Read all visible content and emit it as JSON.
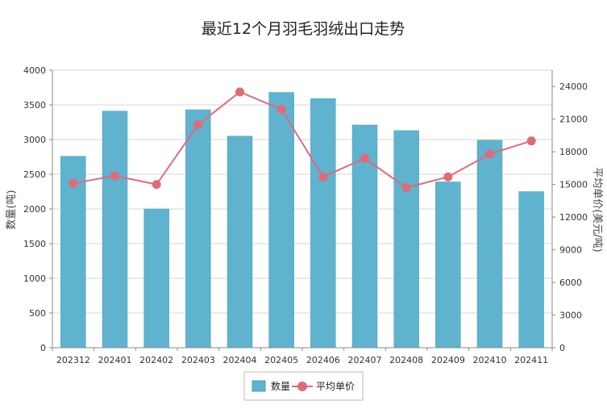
{
  "chart_data": {
    "type": "bar",
    "title": "最近12个月羽毛羽绒出口走势",
    "categories": [
      "202312",
      "202401",
      "202402",
      "202403",
      "202404",
      "202405",
      "202406",
      "202407",
      "202408",
      "202409",
      "202410",
      "202411"
    ],
    "series": [
      {
        "name": "数量",
        "type": "bar",
        "axis": "left",
        "color": "#5fb3ce",
        "values": [
          2760,
          3410,
          2000,
          3430,
          3050,
          3680,
          3590,
          3210,
          3130,
          2390,
          2990,
          2250
        ]
      },
      {
        "name": "平均单价",
        "type": "line",
        "axis": "right",
        "color": "#e06a7a",
        "values": [
          15100,
          15800,
          15000,
          20500,
          23500,
          21900,
          15700,
          17400,
          14700,
          15700,
          17800,
          19000
        ]
      }
    ],
    "ylabel": "数量(吨)",
    "ylim": [
      0,
      4000
    ],
    "yticks": [
      "0",
      "500",
      "1000",
      "1500",
      "2000",
      "2500",
      "3000",
      "3500",
      "4000"
    ],
    "y2label": "平均单价(美元/吨)",
    "y2lim": [
      0,
      25500
    ],
    "y2ticks": [
      "0",
      "3000",
      "6000",
      "9000",
      "12000",
      "15000",
      "18000",
      "21000",
      "24000"
    ],
    "grid": true,
    "legend_position": "bottom-center"
  }
}
